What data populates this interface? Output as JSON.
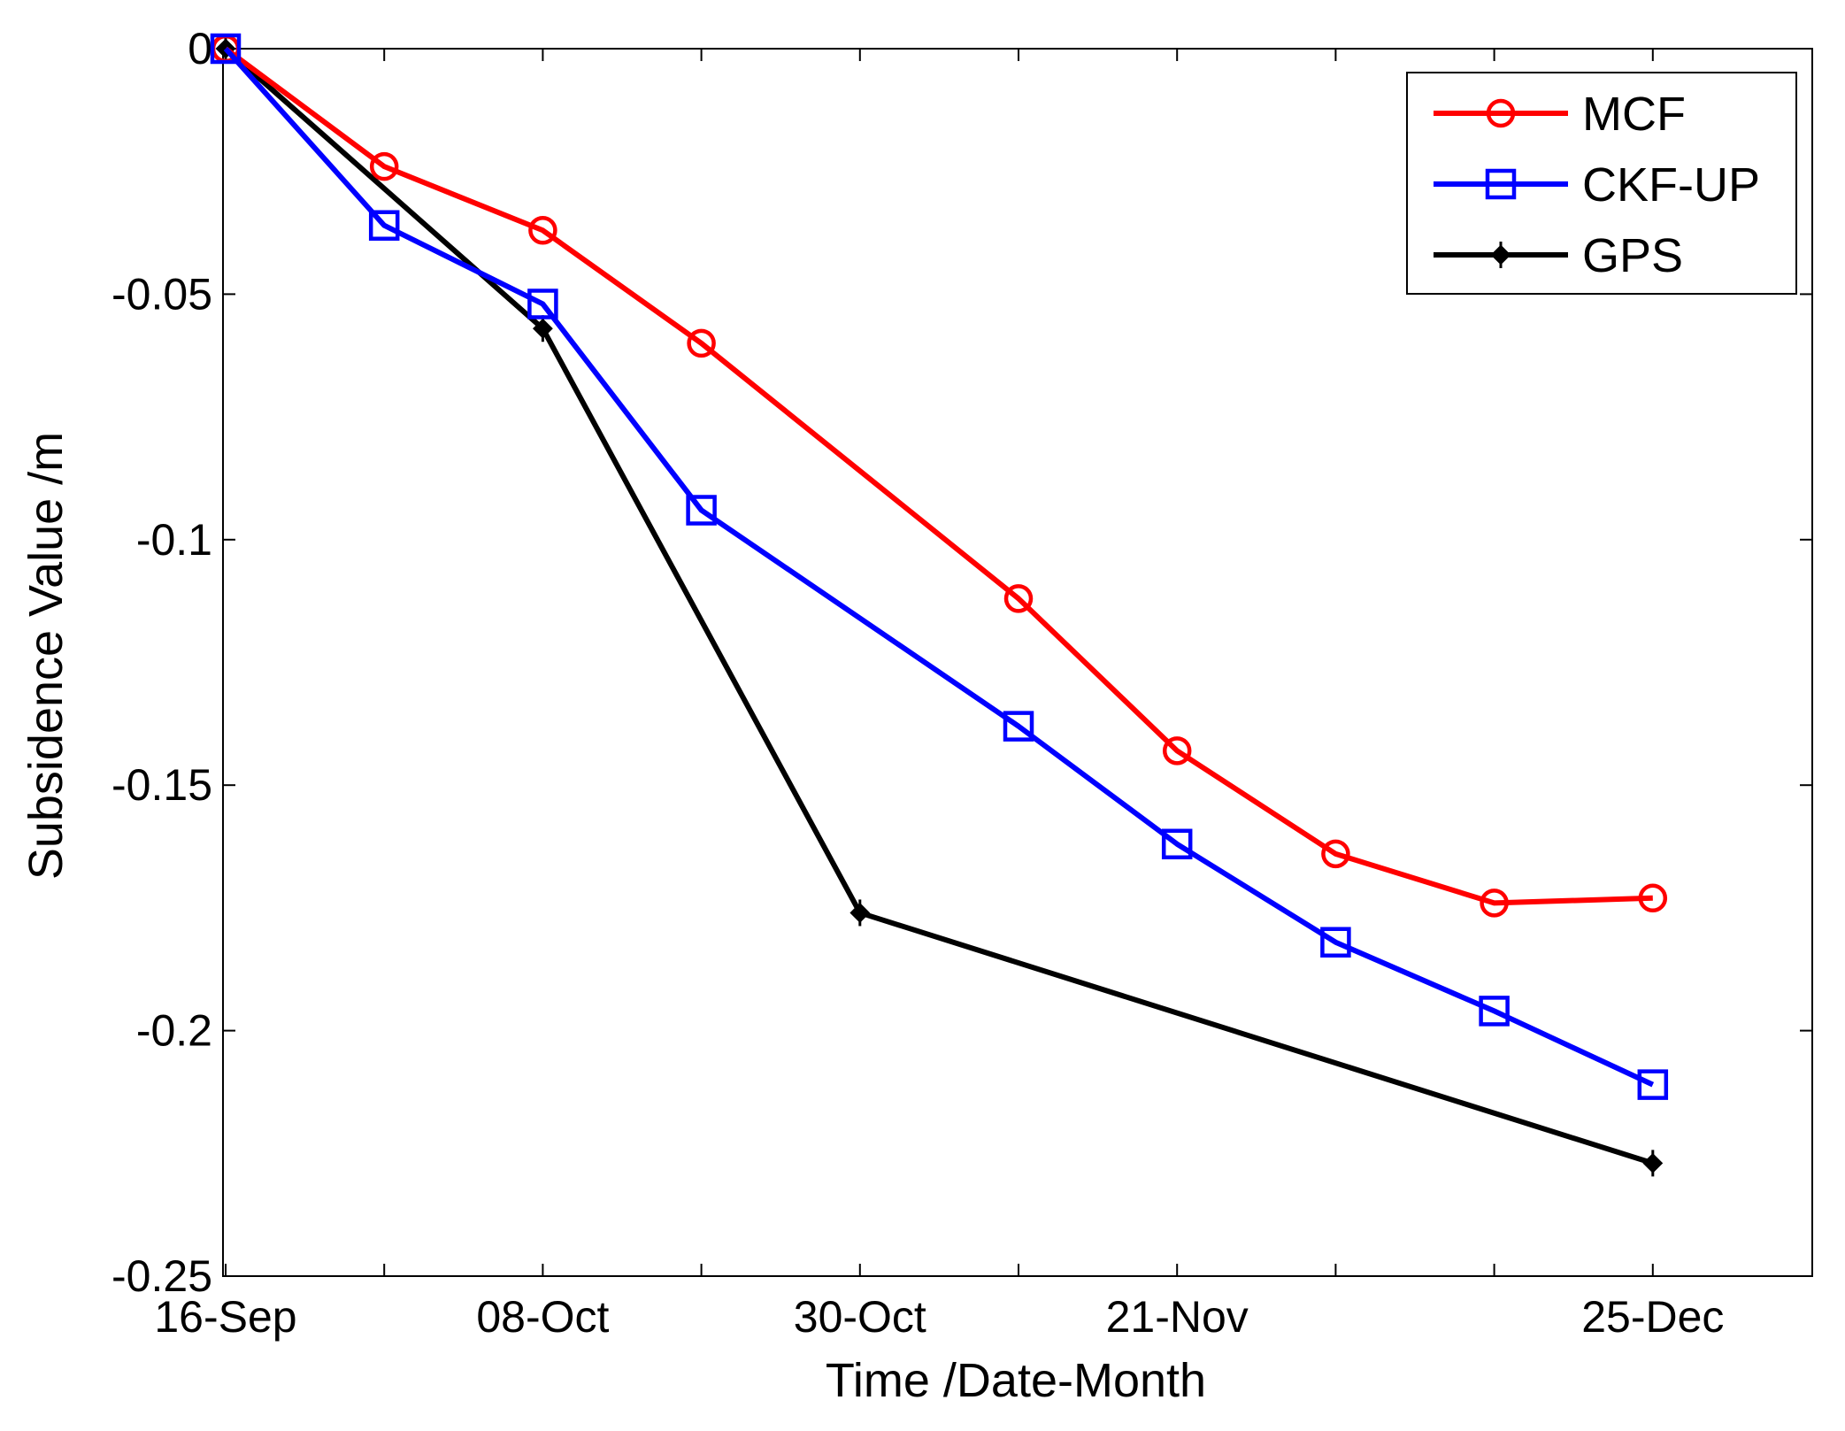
{
  "chart_data": {
    "type": "line",
    "title": "",
    "xlabel": "Time /Date-Month",
    "ylabel": "Subsidence Value /m",
    "xlim": [
      0,
      10
    ],
    "ylim": [
      -0.25,
      0
    ],
    "grid": false,
    "legend_position": "top-right",
    "x_ticks": [
      {
        "value": 0,
        "label": "16-Sep"
      },
      {
        "value": 1,
        "label": ""
      },
      {
        "value": 2,
        "label": "08-Oct"
      },
      {
        "value": 3,
        "label": ""
      },
      {
        "value": 4,
        "label": "30-Oct"
      },
      {
        "value": 5,
        "label": ""
      },
      {
        "value": 6,
        "label": "21-Nov"
      },
      {
        "value": 7,
        "label": ""
      },
      {
        "value": 8,
        "label": ""
      },
      {
        "value": 9,
        "label": "25-Dec"
      }
    ],
    "y_ticks": [
      {
        "value": 0,
        "label": "0"
      },
      {
        "value": -0.05,
        "label": "-0.05"
      },
      {
        "value": -0.1,
        "label": "-0.1"
      },
      {
        "value": -0.15,
        "label": "-0.15"
      },
      {
        "value": -0.2,
        "label": "-0.2"
      },
      {
        "value": -0.25,
        "label": "-0.25"
      }
    ],
    "series": [
      {
        "name": "MCF",
        "color": "#ff0000",
        "marker": "circle",
        "x": [
          0,
          1,
          2,
          3,
          5,
          6,
          7,
          8,
          9
        ],
        "values": [
          0,
          -0.024,
          -0.037,
          -0.06,
          -0.112,
          -0.143,
          -0.164,
          -0.174,
          -0.173
        ]
      },
      {
        "name": "CKF-UP",
        "color": "#0000ff",
        "marker": "square",
        "x": [
          0,
          1,
          2,
          3,
          5,
          6,
          7,
          8,
          9
        ],
        "values": [
          0,
          -0.036,
          -0.052,
          -0.094,
          -0.138,
          -0.162,
          -0.182,
          -0.196,
          -0.211
        ]
      },
      {
        "name": "GPS",
        "color": "#000000",
        "marker": "diamond",
        "x": [
          0,
          2,
          4,
          9
        ],
        "values": [
          0,
          -0.057,
          -0.176,
          -0.227
        ]
      }
    ]
  }
}
